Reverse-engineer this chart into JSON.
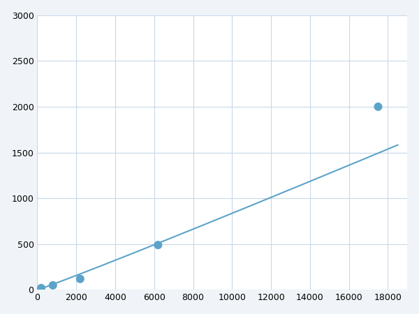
{
  "x": [
    200,
    800,
    2200,
    6200,
    17500
  ],
  "y": [
    20,
    50,
    120,
    490,
    2000
  ],
  "line_color": "#5ba3c9",
  "marker_color": "#5ba3c9",
  "marker_size": 5,
  "xlim": [
    0,
    19000
  ],
  "ylim": [
    0,
    3000
  ],
  "xticks": [
    0,
    2000,
    4000,
    6000,
    8000,
    10000,
    12000,
    14000,
    16000,
    18000
  ],
  "yticks": [
    0,
    500,
    1000,
    1500,
    2000,
    2500,
    3000
  ],
  "grid_color": "#c8d8e8",
  "bg_color": "#ffffff",
  "linewidth": 1.5,
  "figure_bg": "#f0f4f8"
}
